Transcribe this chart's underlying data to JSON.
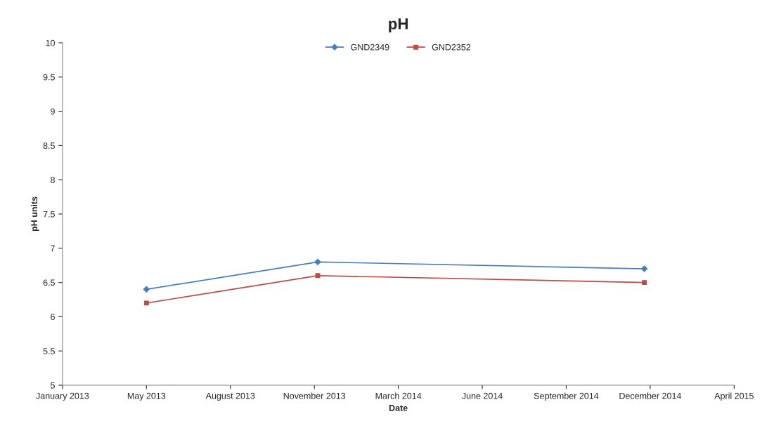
{
  "chart_data": {
    "type": "line",
    "title": "pH",
    "xlabel": "Date",
    "ylabel": "pH units",
    "x": [
      "2013-05-05",
      "2013-11-25",
      "2014-12-19"
    ],
    "series": [
      {
        "name": "GND2349",
        "color": "#4a7ebb",
        "marker": "diamond",
        "values": [
          6.4,
          6.8,
          6.7
        ]
      },
      {
        "name": "GND2352",
        "color": "#be4b48",
        "marker": "square",
        "values": [
          6.2,
          6.6,
          6.5
        ]
      }
    ],
    "xlim": [
      "2013-01-25",
      "2015-04-05"
    ],
    "xticks": [
      {
        "value": "2013-01-25",
        "label": "January 2013"
      },
      {
        "value": "2013-05-05",
        "label": "May 2013"
      },
      {
        "value": "2013-08-13",
        "label": "August 2013"
      },
      {
        "value": "2013-11-21",
        "label": "November 2013"
      },
      {
        "value": "2014-03-01",
        "label": "March 2014"
      },
      {
        "value": "2014-06-09",
        "label": "June 2014"
      },
      {
        "value": "2014-09-17",
        "label": "September 2014"
      },
      {
        "value": "2014-12-26",
        "label": "December 2014"
      },
      {
        "value": "2015-04-05",
        "label": "April 2015"
      }
    ],
    "ylim": [
      5,
      10
    ],
    "yticks": [
      5,
      5.5,
      6,
      6.5,
      7,
      7.5,
      8,
      8.5,
      9,
      9.5,
      10
    ],
    "grid": false,
    "legend": "top",
    "line_style": "solid"
  }
}
